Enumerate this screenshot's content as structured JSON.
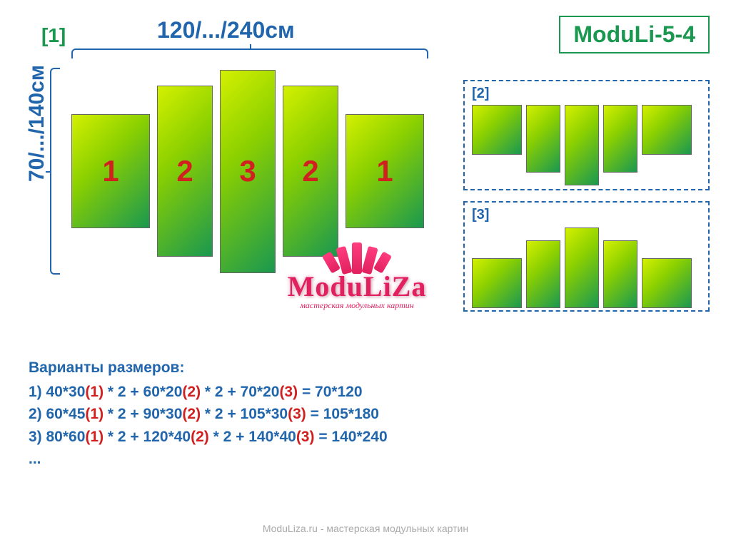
{
  "title": "ModuLi-5-4",
  "width_label": "120/.../240см",
  "height_label": "70/.../140см",
  "main": {
    "label": "[1]",
    "panels": [
      {
        "num": "1",
        "cls": "p-1"
      },
      {
        "num": "2",
        "cls": "p-2"
      },
      {
        "num": "3",
        "cls": "p-3"
      },
      {
        "num": "2",
        "cls": "p-2"
      },
      {
        "num": "1",
        "cls": "p-1"
      }
    ]
  },
  "variants": {
    "v2_label": "[2]",
    "v3_label": "[3]",
    "small_panels": [
      {
        "cls": "sp-1"
      },
      {
        "cls": "sp-2"
      },
      {
        "cls": "sp-3"
      },
      {
        "cls": "sp-2"
      },
      {
        "cls": "sp-1"
      }
    ]
  },
  "sizes": {
    "header": "Варианты размеров:",
    "lines": [
      {
        "pre1": "1) 40*30",
        "n1": "(1)",
        "mid1": " * 2 + 60*20",
        "n2": "(2)",
        "mid2": " * 2 + 70*20",
        "n3": "(3)",
        "post": " = 70*120"
      },
      {
        "pre1": "2) 60*45",
        "n1": "(1)",
        "mid1": " * 2 + 90*30",
        "n2": "(2)",
        "mid2": " * 2 + 105*30",
        "n3": "(3)",
        "post": " = 105*180"
      },
      {
        "pre1": "3) 80*60",
        "n1": "(1)",
        "mid1": " * 2 + 120*40",
        "n2": "(2)",
        "mid2": " * 2 + 140*40",
        "n3": "(3)",
        "post": " = 140*240"
      }
    ],
    "ellipsis": "..."
  },
  "logo": {
    "text": "ModuLiZa",
    "sub": "мастерская модульных картин"
  },
  "footer": "ModuLiza.ru - мастерская модульных картин",
  "colors": {
    "panel_gradient_from": "#d4f000",
    "panel_gradient_mid": "#8bd000",
    "panel_gradient_to": "#1a9850",
    "accent_blue": "#2166ac",
    "accent_green": "#1a9850",
    "accent_red": "#d02020",
    "logo_pink": "#e0205f",
    "footer_gray": "#aaaaaa",
    "background": "#ffffff"
  }
}
